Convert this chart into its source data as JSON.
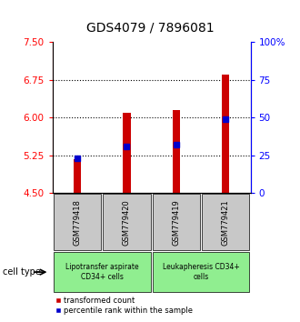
{
  "title": "GDS4079 / 7896081",
  "categories": [
    "GSM779418",
    "GSM779420",
    "GSM779419",
    "GSM779421"
  ],
  "red_values": [
    5.18,
    6.1,
    6.15,
    6.85
  ],
  "blue_values": [
    5.19,
    5.42,
    5.47,
    5.96
  ],
  "ymin": 4.5,
  "ymax": 7.5,
  "yticks_left": [
    4.5,
    5.25,
    6.0,
    6.75,
    7.5
  ],
  "yticks_right": [
    0,
    25,
    50,
    75,
    100
  ],
  "bar_color": "#cc0000",
  "blue_color": "#0000cc",
  "bar_width": 0.15,
  "group1_color": "#c8c8c8",
  "group2_color": "#90ee90",
  "cell_type_label": "cell type",
  "group1_label": "Lipotransfer aspirate\nCD34+ cells",
  "group2_label": "Leukapheresis CD34+\ncells",
  "legend_red": "transformed count",
  "legend_blue": "percentile rank within the sample",
  "title_fontsize": 10,
  "tick_fontsize": 7.5,
  "label_fontsize": 6
}
